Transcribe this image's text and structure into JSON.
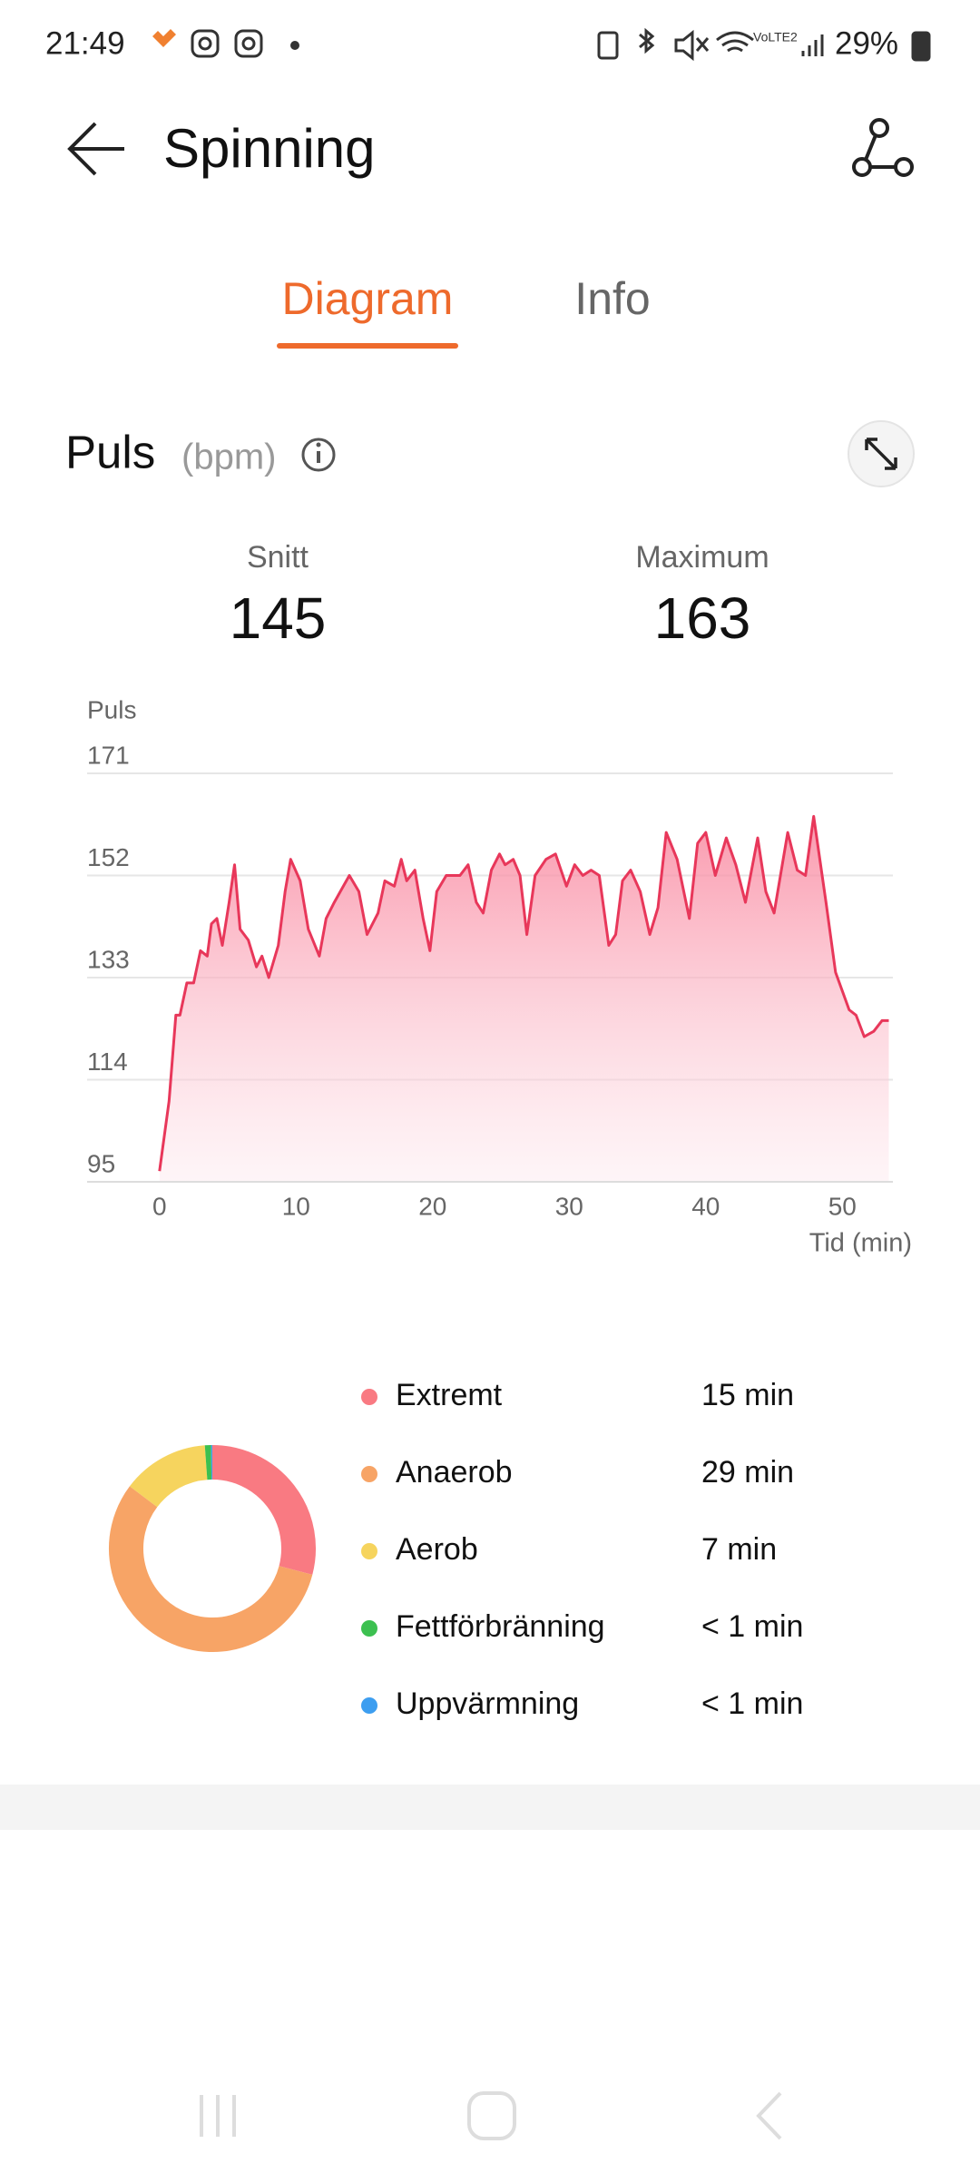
{
  "status_bar": {
    "time": "21:49",
    "battery": "29%"
  },
  "header": {
    "title": "Spinning"
  },
  "tabs": [
    "Diagram",
    "Info"
  ],
  "section": {
    "title": "Puls",
    "unit": "(bpm)"
  },
  "stats": [
    {
      "label": "Snitt",
      "value": "145"
    },
    {
      "label": "Maximum",
      "value": "163"
    }
  ],
  "chart_data": [
    {
      "type": "line",
      "y_label": "Puls",
      "x_label": "Tid (min)",
      "color": "#e8375a",
      "grid": true,
      "x": [
        0,
        0.7,
        1.2,
        1.5,
        2,
        2.5,
        3,
        3.5,
        3.8,
        4.2,
        4.6,
        5.1,
        5.5,
        5.9,
        6.5,
        7.1,
        7.5,
        8,
        8.7,
        9.2,
        9.6,
        10.3,
        10.9,
        11.7,
        12.2,
        12.8,
        13.9,
        14.6,
        15.2,
        16,
        16.5,
        17.2,
        17.7,
        18.1,
        18.7,
        19.3,
        19.8,
        20.3,
        21,
        21.5,
        22,
        22.6,
        23.2,
        23.7,
        24.3,
        24.9,
        25.3,
        25.9,
        26.4,
        26.9,
        27.5,
        28.3,
        29,
        29.8,
        30.4,
        31,
        31.6,
        32.2,
        32.9,
        33.4,
        33.9,
        34.5,
        35.2,
        35.9,
        36.5,
        37.1,
        37.9,
        38.8,
        39.4,
        40,
        40.7,
        41.5,
        42.2,
        42.9,
        43.8,
        44.4,
        45,
        46,
        46.7,
        47.3,
        47.9,
        48.8,
        49.5,
        50.5,
        51,
        51.6,
        52.3,
        52.9,
        53.4
      ],
      "values": [
        97,
        110,
        126,
        126,
        132,
        132,
        138,
        137,
        143,
        144,
        139,
        147,
        154,
        142,
        140,
        135,
        137,
        133,
        139,
        149,
        155,
        151,
        142,
        137,
        144,
        147,
        152,
        149,
        141,
        145,
        151,
        150,
        155,
        151,
        153,
        144,
        138,
        149,
        152,
        152,
        152,
        154,
        147,
        145,
        153,
        156,
        154,
        155,
        152,
        141,
        152,
        155,
        156,
        150,
        154,
        152,
        153,
        152,
        139,
        141,
        151,
        153,
        149,
        141,
        146,
        160,
        155,
        144,
        158,
        160,
        152,
        159,
        154,
        147,
        159,
        149,
        145,
        160,
        153,
        152,
        163,
        147,
        134,
        127,
        126,
        122,
        123,
        125,
        125
      ],
      "xlim": [
        -5.3,
        53.7
      ],
      "ylim": [
        95,
        171
      ],
      "xticks": [
        0,
        10,
        20,
        30,
        40,
        50
      ],
      "yticks": [
        95,
        114,
        133,
        152,
        171
      ]
    },
    {
      "type": "donut",
      "categories": [
        "Extremt",
        "Anaerob",
        "Aerob",
        "Fettförbränning",
        "Uppvärmning"
      ],
      "values": [
        15,
        29,
        7,
        0.5,
        0.1
      ],
      "value_labels": [
        "15 min",
        "29 min",
        "7 min",
        "< 1 min",
        "< 1 min"
      ],
      "colors": [
        "#f97a82",
        "#f7a466",
        "#f6d45e",
        "#3cc050",
        "#3d9ef0"
      ]
    }
  ]
}
